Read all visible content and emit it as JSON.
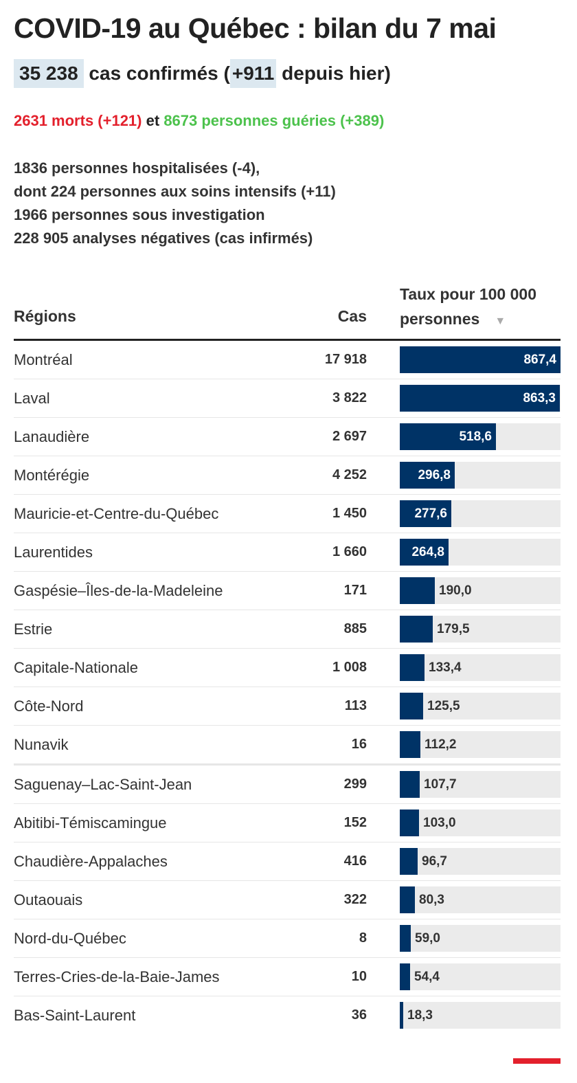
{
  "title": "COVID-19 au Québec : bilan du 7 mai",
  "summary": {
    "cases": "35 238",
    "cases_label": "cas confirmés (",
    "delta": "+911",
    "delta_label": "depuis hier)"
  },
  "status": {
    "deaths": "2631 morts (+121)",
    "connector": "et",
    "recovered": "8673 personnes guéries (+389)"
  },
  "stats": [
    "1836 personnes hospitalisées (-4),",
    "dont 224 personnes aux soins intensifs (+11)",
    "1966 personnes sous investigation",
    "228 905 analyses négatives (cas infirmés)"
  ],
  "table": {
    "col_region": "Régions",
    "col_cases": "Cas",
    "col_rate_line1": "Taux pour 100 000",
    "col_rate_line2": "personnes",
    "sort_icon": "▼"
  },
  "colors": {
    "bar": "#003366",
    "track": "#ebebeb",
    "deaths": "#e3202c",
    "recovered": "#4cc24c",
    "highlight": "#dce8f0"
  },
  "chart_data": {
    "type": "table",
    "max_rate": 867.4,
    "rows": [
      {
        "region": "Montréal",
        "cases": "17 918",
        "rate": 867.4,
        "rate_label": "867,4"
      },
      {
        "region": "Laval",
        "cases": "3 822",
        "rate": 863.3,
        "rate_label": "863,3"
      },
      {
        "region": "Lanaudière",
        "cases": "2 697",
        "rate": 518.6,
        "rate_label": "518,6"
      },
      {
        "region": "Montérégie",
        "cases": "4 252",
        "rate": 296.8,
        "rate_label": "296,8"
      },
      {
        "region": "Mauricie-et-Centre-du-Québec",
        "cases": "1 450",
        "rate": 277.6,
        "rate_label": "277,6"
      },
      {
        "region": "Laurentides",
        "cases": "1 660",
        "rate": 264.8,
        "rate_label": "264,8"
      },
      {
        "region": "Gaspésie–Îles-de-la-Madeleine",
        "cases": "171",
        "rate": 190.0,
        "rate_label": "190,0"
      },
      {
        "region": "Estrie",
        "cases": "885",
        "rate": 179.5,
        "rate_label": "179,5"
      },
      {
        "region": "Capitale-Nationale",
        "cases": "1 008",
        "rate": 133.4,
        "rate_label": "133,4"
      },
      {
        "region": "Côte-Nord",
        "cases": "113",
        "rate": 125.5,
        "rate_label": "125,5"
      },
      {
        "region": "Nunavik",
        "cases": "16",
        "rate": 112.2,
        "rate_label": "112,2"
      },
      {
        "region": "Saguenay–Lac-Saint-Jean",
        "cases": "299",
        "rate": 107.7,
        "rate_label": "107,7"
      },
      {
        "region": "Abitibi-Témiscamingue",
        "cases": "152",
        "rate": 103.0,
        "rate_label": "103,0"
      },
      {
        "region": "Chaudière-Appalaches",
        "cases": "416",
        "rate": 96.7,
        "rate_label": "96,7"
      },
      {
        "region": "Outaouais",
        "cases": "322",
        "rate": 80.3,
        "rate_label": "80,3"
      },
      {
        "region": "Nord-du-Québec",
        "cases": "8",
        "rate": 59.0,
        "rate_label": "59,0"
      },
      {
        "region": "Terres-Cries-de-la-Baie-James",
        "cases": "10",
        "rate": 54.4,
        "rate_label": "54,4"
      },
      {
        "region": "Bas-Saint-Laurent",
        "cases": "36",
        "rate": 18.3,
        "rate_label": "18,3"
      }
    ]
  }
}
